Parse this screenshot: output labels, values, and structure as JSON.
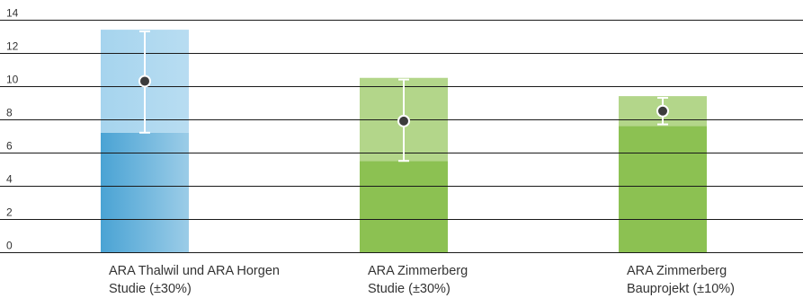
{
  "chart_data": {
    "type": "bar",
    "title": "",
    "xlabel": "",
    "ylabel": "",
    "ylim": [
      0,
      14
    ],
    "yticks": [
      "0",
      "2",
      "4",
      "6",
      "8",
      "10",
      "12",
      "14"
    ],
    "grid": true,
    "categories": [
      {
        "line1": "ARA Thalwil und ARA Horgen",
        "line2": "Studie (±30%)"
      },
      {
        "line1": "ARA Zimmerberg",
        "line2": "Studie (±30%)"
      },
      {
        "line1": "ARA Zimmerberg",
        "line2": "Bauprojekt (±10%)"
      }
    ],
    "bars": [
      {
        "low": 7.2,
        "high": 13.4,
        "value": 10.3,
        "err_low": 7.2,
        "err_high": 13.3,
        "color_dark": "#4aa3d4",
        "color_light": "#a6d4ee"
      },
      {
        "low": 5.5,
        "high": 10.5,
        "value": 7.9,
        "err_low": 5.5,
        "err_high": 10.4,
        "color_dark": "#8cc152",
        "color_light": "#b3d68a"
      },
      {
        "low": 7.6,
        "high": 9.4,
        "value": 8.5,
        "err_low": 7.7,
        "err_high": 9.3,
        "color_dark": "#8cc152",
        "color_light": "#b3d68a"
      }
    ],
    "point_color": "#3c3c3c",
    "errorbar_color": "#ffffff",
    "gridline_color": "#1a1a1a"
  }
}
